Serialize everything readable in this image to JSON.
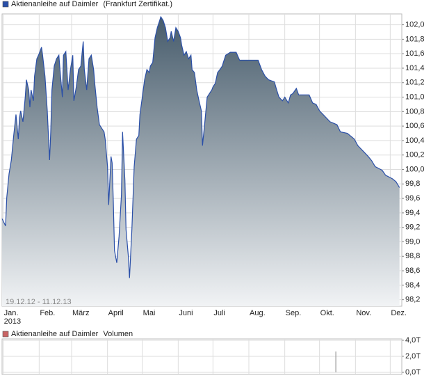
{
  "chart_data": [
    {
      "type": "area",
      "legend_suffix": "(Frankfurt Zertifikat.)",
      "range_label": "19.12.12 - 11.12.13",
      "x_year_label": "2013",
      "x": [
        -1,
        2,
        3,
        5,
        7,
        9,
        11,
        13,
        14,
        15,
        17,
        19,
        20,
        22,
        23,
        24,
        26,
        27,
        29,
        31,
        33,
        34,
        36,
        38,
        40,
        41,
        42,
        44,
        46,
        48,
        49,
        51,
        52,
        54,
        56,
        58,
        60,
        61,
        63,
        65,
        67,
        69,
        70,
        72,
        74,
        76,
        78,
        79,
        81,
        83,
        85,
        87,
        88,
        90,
        91,
        93,
        94,
        95,
        96,
        98,
        100,
        102,
        103,
        105,
        106,
        108,
        109,
        111,
        113,
        115,
        117,
        118,
        120,
        122,
        124,
        126,
        127,
        129,
        131,
        133,
        135,
        136,
        138,
        140,
        142,
        144,
        145,
        147,
        149,
        151,
        153,
        154,
        156,
        158,
        160,
        162,
        163,
        165,
        167,
        169,
        171,
        172,
        174,
        176,
        178,
        180,
        181,
        183,
        185,
        187,
        189,
        190,
        192,
        194,
        196,
        201,
        204,
        220,
        223,
        226,
        229,
        234,
        236,
        238,
        241,
        243,
        246,
        248,
        250,
        253,
        255,
        264,
        267,
        270,
        273,
        279,
        282,
        288,
        291,
        297,
        303,
        306,
        309,
        312,
        315,
        318,
        321,
        327,
        330,
        336,
        339,
        342
      ],
      "series": [
        {
          "name": "Aktienanleihe auf Daimler",
          "color": "#2a4fa8",
          "values": [
            99.32,
            99.22,
            99.61,
            99.94,
            100.13,
            100.47,
            100.76,
            100.42,
            100.71,
            100.81,
            100.66,
            101.0,
            101.24,
            101.1,
            100.86,
            101.1,
            100.95,
            101.29,
            101.53,
            101.6,
            101.69,
            101.58,
            101.29,
            100.81,
            100.13,
            100.52,
            101.1,
            101.43,
            101.53,
            101.58,
            101.38,
            101.0,
            101.58,
            101.63,
            101.1,
            101.38,
            101.58,
            100.95,
            101.14,
            101.38,
            101.43,
            101.77,
            101.38,
            101.1,
            101.53,
            101.58,
            101.38,
            101.19,
            100.86,
            100.62,
            100.57,
            100.52,
            100.42,
            100.04,
            99.51,
            100.18,
            100.09,
            99.56,
            98.88,
            98.71,
            99.08,
            99.65,
            100.52,
            99.85,
            99.17,
            98.79,
            98.5,
            99.17,
            100.04,
            100.42,
            100.47,
            100.76,
            101.0,
            101.24,
            101.38,
            101.34,
            101.43,
            101.48,
            101.82,
            101.96,
            102.06,
            102.11,
            102.06,
            101.96,
            101.77,
            101.82,
            101.91,
            101.77,
            101.96,
            101.91,
            101.82,
            101.72,
            101.58,
            101.63,
            101.53,
            101.58,
            101.38,
            101.34,
            101.1,
            100.95,
            100.81,
            100.33,
            100.66,
            101.0,
            101.05,
            101.1,
            101.14,
            101.19,
            101.34,
            101.38,
            101.43,
            101.48,
            101.58,
            101.6,
            101.62,
            101.62,
            101.51,
            101.51,
            101.38,
            101.29,
            101.24,
            101.21,
            101.1,
            101.0,
            100.95,
            101.0,
            100.92,
            101.03,
            101.05,
            101.12,
            101.03,
            101.03,
            100.92,
            100.9,
            100.81,
            100.71,
            100.66,
            100.62,
            100.52,
            100.5,
            100.42,
            100.33,
            100.28,
            100.23,
            100.18,
            100.12,
            100.04,
            99.99,
            99.92,
            99.87,
            99.83,
            99.75
          ]
        }
      ],
      "xlim": [
        -1,
        344
      ],
      "xticks": [
        {
          "value": 0,
          "label": "Jan."
        },
        {
          "value": 31,
          "label": "Feb."
        },
        {
          "value": 59,
          "label": "März"
        },
        {
          "value": 90,
          "label": "April"
        },
        {
          "value": 120,
          "label": "Mai"
        },
        {
          "value": 151,
          "label": "Juni"
        },
        {
          "value": 181,
          "label": "Juli"
        },
        {
          "value": 212,
          "label": "Aug."
        },
        {
          "value": 243,
          "label": "Sep."
        },
        {
          "value": 273,
          "label": "Okt."
        },
        {
          "value": 304,
          "label": "Nov."
        },
        {
          "value": 334,
          "label": "Dez."
        }
      ],
      "ylim": [
        98.11,
        102.15
      ],
      "yticks": [
        {
          "value": 98.2,
          "label": "98,2"
        },
        {
          "value": 98.4,
          "label": "98,4"
        },
        {
          "value": 98.6,
          "label": "98,6"
        },
        {
          "value": 98.8,
          "label": "98,8"
        },
        {
          "value": 99.0,
          "label": "99,0"
        },
        {
          "value": 99.2,
          "label": "99,2"
        },
        {
          "value": 99.4,
          "label": "99,4"
        },
        {
          "value": 99.6,
          "label": "99,6"
        },
        {
          "value": 99.8,
          "label": "99,8"
        },
        {
          "value": 100.0,
          "label": "100,0"
        },
        {
          "value": 100.2,
          "label": "100,2"
        },
        {
          "value": 100.4,
          "label": "100,4"
        },
        {
          "value": 100.6,
          "label": "100,6"
        },
        {
          "value": 100.8,
          "label": "100,8"
        },
        {
          "value": 101.0,
          "label": "101,0"
        },
        {
          "value": 101.2,
          "label": "101,2"
        },
        {
          "value": 101.4,
          "label": "101,4"
        },
        {
          "value": 101.6,
          "label": "101,6"
        },
        {
          "value": 101.8,
          "label": "101,8"
        },
        {
          "value": 102.0,
          "label": "102,0"
        }
      ],
      "grid": true
    },
    {
      "type": "bar",
      "legend_suffix": "Volumen",
      "x": [
        287
      ],
      "series": [
        {
          "name": "Aktienanleihe auf Daimler",
          "color": "#c86464",
          "values": [
            2.6
          ]
        }
      ],
      "xlim": [
        -1,
        344
      ],
      "ylim": [
        -0.26,
        4.17
      ],
      "yticks": [
        {
          "value": 0,
          "label": "0,0T"
        },
        {
          "value": 2,
          "label": "2,0T"
        },
        {
          "value": 4,
          "label": "4,0T"
        }
      ],
      "grid": true
    }
  ]
}
